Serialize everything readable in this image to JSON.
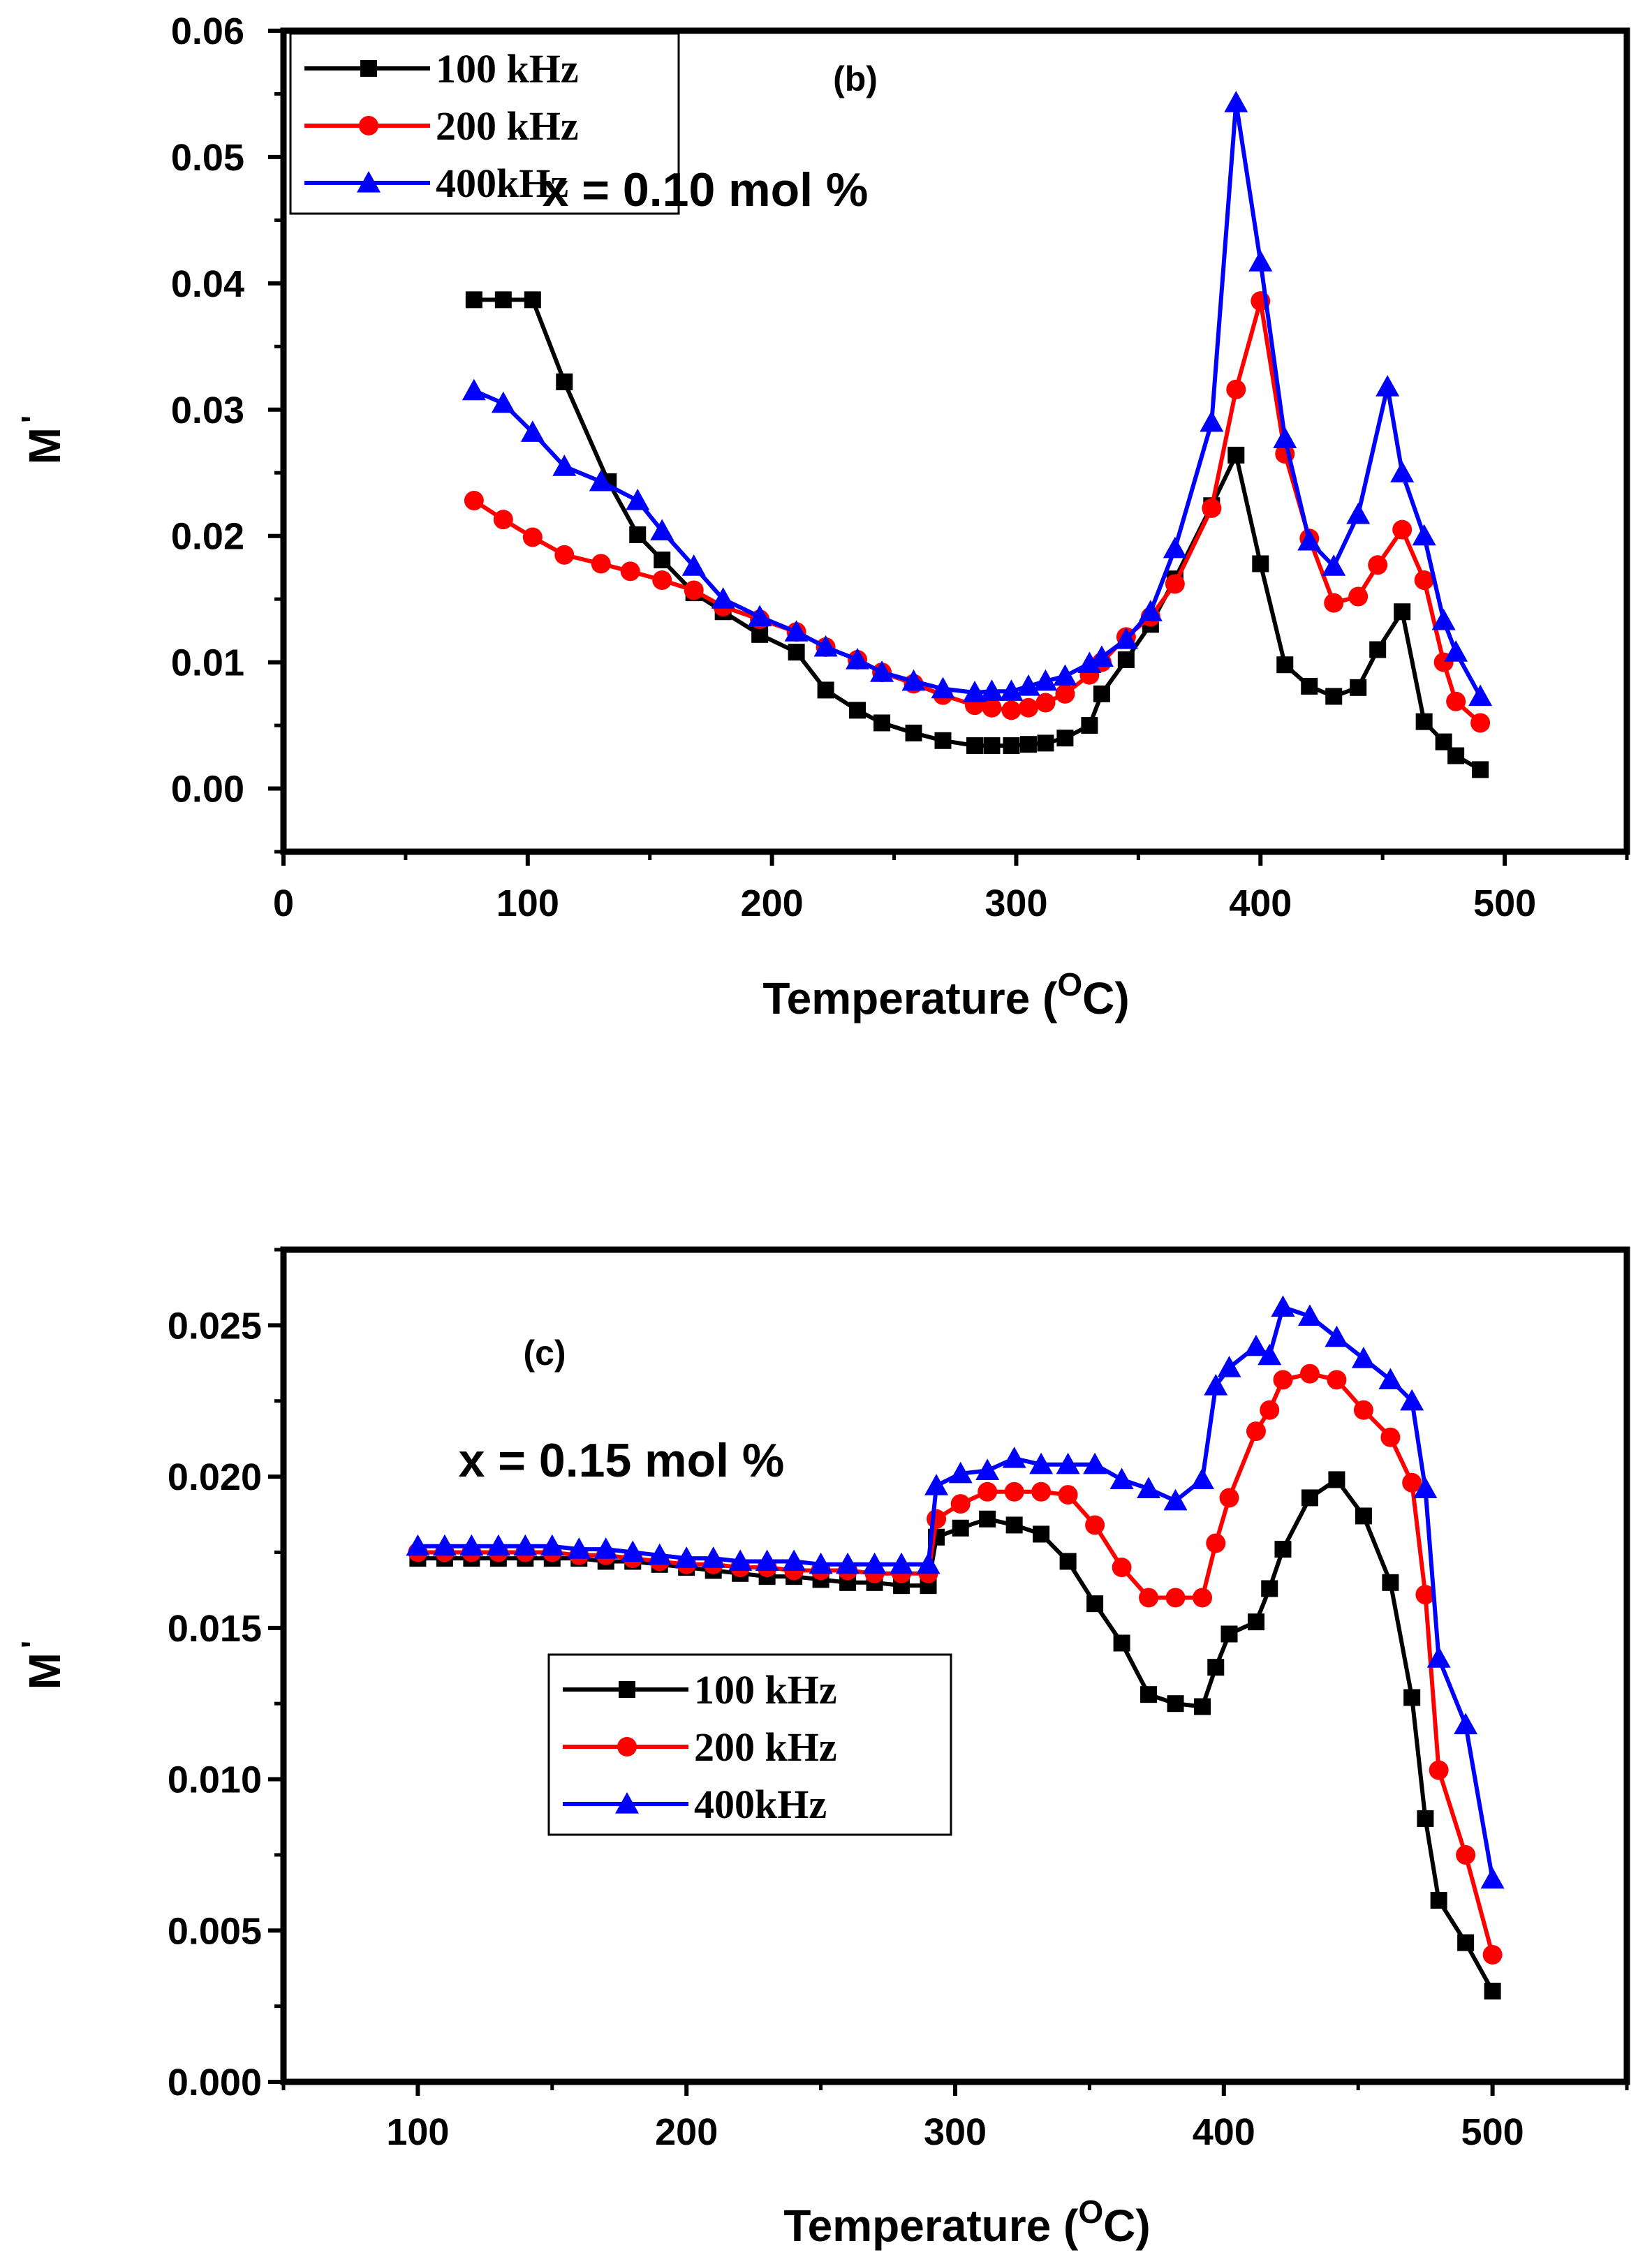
{
  "chart_data": [
    {
      "type": "line",
      "panel_label": "(b)",
      "annotation": "x = 0.10 mol %",
      "xlabel": "Temperature (",
      "xlabel_sup": "O",
      "xlabel_end": "C)",
      "ylabel": "M",
      "ylabel_prime": "'",
      "xlim": [
        0,
        550
      ],
      "ylim": [
        -0.005,
        0.06
      ],
      "xticks": [
        0,
        100,
        200,
        300,
        400,
        500
      ],
      "yticks": [
        0.0,
        0.01,
        0.02,
        0.03,
        0.04,
        0.05,
        0.06
      ],
      "xtick_labels": [
        "0",
        "100",
        "200",
        "300",
        "400",
        "500"
      ],
      "ytick_labels": [
        "0.00",
        "0.01",
        "0.02",
        "0.03",
        "0.04",
        "0.05",
        "0.06"
      ],
      "legend_position": "top-left",
      "series": [
        {
          "name": "100 kHz",
          "color": "#000000",
          "marker": "square",
          "x": [
            78,
            90,
            102,
            115,
            133,
            145,
            155,
            168,
            180,
            195,
            210,
            222,
            235,
            245,
            258,
            270,
            283,
            290,
            298,
            305,
            312,
            320,
            330,
            335,
            345,
            355,
            365,
            380,
            390,
            400,
            410,
            420,
            430,
            440,
            448,
            458,
            467,
            475,
            480,
            490
          ],
          "y": [
            0.0387,
            0.0387,
            0.0387,
            0.0322,
            0.0243,
            0.0201,
            0.0181,
            0.0155,
            0.014,
            0.0122,
            0.0108,
            0.0078,
            0.0062,
            0.0052,
            0.0044,
            0.0038,
            0.0034,
            0.0034,
            0.0034,
            0.0035,
            0.0036,
            0.004,
            0.005,
            0.0075,
            0.0102,
            0.013,
            0.0166,
            0.0224,
            0.0264,
            0.0178,
            0.0098,
            0.0081,
            0.0073,
            0.008,
            0.011,
            0.014,
            0.0053,
            0.0037,
            0.0026,
            0.0015
          ]
        },
        {
          "name": "200 kHz",
          "color": "#ff0000",
          "marker": "circle",
          "x": [
            78,
            90,
            102,
            115,
            130,
            142,
            155,
            168,
            180,
            195,
            210,
            222,
            235,
            245,
            258,
            270,
            283,
            290,
            298,
            305,
            312,
            320,
            330,
            335,
            345,
            355,
            365,
            380,
            390,
            400,
            410,
            420,
            430,
            440,
            448,
            458,
            467,
            475,
            480,
            490
          ],
          "y": [
            0.0228,
            0.0213,
            0.0199,
            0.0185,
            0.0178,
            0.0172,
            0.0165,
            0.0157,
            0.0144,
            0.0134,
            0.0124,
            0.0112,
            0.0102,
            0.0092,
            0.0083,
            0.0074,
            0.0066,
            0.0064,
            0.0062,
            0.0064,
            0.0068,
            0.0075,
            0.009,
            0.01,
            0.012,
            0.0136,
            0.0162,
            0.0222,
            0.0316,
            0.0386,
            0.0265,
            0.0198,
            0.0147,
            0.0152,
            0.0177,
            0.0205,
            0.0165,
            0.01,
            0.0069,
            0.0052
          ]
        },
        {
          "name": "400kHz",
          "color": "#0000ff",
          "marker": "triangle",
          "x": [
            78,
            90,
            102,
            115,
            130,
            145,
            155,
            168,
            180,
            195,
            210,
            222,
            235,
            245,
            258,
            270,
            283,
            290,
            298,
            305,
            312,
            320,
            330,
            335,
            345,
            355,
            365,
            380,
            390,
            400,
            410,
            420,
            430,
            440,
            452,
            458,
            467,
            475,
            480,
            490
          ],
          "y": [
            0.0315,
            0.0305,
            0.0282,
            0.0255,
            0.0243,
            0.0228,
            0.0204,
            0.0176,
            0.015,
            0.0136,
            0.0124,
            0.0112,
            0.0102,
            0.0092,
            0.0085,
            0.0079,
            0.0076,
            0.0077,
            0.0077,
            0.0081,
            0.0085,
            0.0089,
            0.0099,
            0.0104,
            0.0118,
            0.014,
            0.019,
            0.029,
            0.0543,
            0.0417,
            0.0277,
            0.0196,
            0.0176,
            0.0217,
            0.0318,
            0.025,
            0.02,
            0.0133,
            0.0108,
            0.0073
          ]
        }
      ]
    },
    {
      "type": "line",
      "panel_label": "(c)",
      "annotation": "x = 0.15 mol %",
      "xlabel": "Temperature (",
      "xlabel_sup": "O",
      "xlabel_end": "C)",
      "ylabel": "M",
      "ylabel_prime": "'",
      "xlim": [
        50,
        550
      ],
      "ylim": [
        0.0,
        0.0275
      ],
      "xticks": [
        100,
        200,
        300,
        400,
        500
      ],
      "yticks": [
        0.0,
        0.005,
        0.01,
        0.015,
        0.02,
        0.025
      ],
      "xtick_labels": [
        "100",
        "200",
        "300",
        "400",
        "500"
      ],
      "ytick_labels": [
        "0.000",
        "0.005",
        "0.010",
        "0.015",
        "0.020",
        "0.025"
      ],
      "legend_position": "center-left",
      "series": [
        {
          "name": "100 kHz",
          "color": "#000000",
          "marker": "square",
          "x": [
            100,
            110,
            120,
            130,
            140,
            150,
            160,
            170,
            180,
            190,
            200,
            210,
            220,
            230,
            240,
            250,
            260,
            270,
            280,
            290,
            293,
            302,
            312,
            322,
            332,
            342,
            352,
            362,
            372,
            382,
            392,
            397,
            402,
            412,
            417,
            422,
            432,
            442,
            452,
            462,
            470,
            475,
            480,
            490,
            500
          ],
          "y": [
            0.0173,
            0.0173,
            0.0173,
            0.0173,
            0.0173,
            0.0173,
            0.0173,
            0.0172,
            0.0172,
            0.0171,
            0.017,
            0.0169,
            0.0168,
            0.0167,
            0.0167,
            0.0166,
            0.0165,
            0.0165,
            0.0164,
            0.0164,
            0.018,
            0.0183,
            0.0186,
            0.0184,
            0.0181,
            0.0172,
            0.0158,
            0.0145,
            0.0128,
            0.0125,
            0.0124,
            0.0137,
            0.0148,
            0.0152,
            0.0163,
            0.0176,
            0.0193,
            0.0199,
            0.0187,
            0.0165,
            0.0127,
            0.0087,
            0.006,
            0.0046,
            0.003
          ]
        },
        {
          "name": "200 kHz",
          "color": "#ff0000",
          "marker": "circle",
          "x": [
            100,
            110,
            120,
            130,
            140,
            150,
            160,
            170,
            180,
            190,
            200,
            210,
            220,
            230,
            240,
            250,
            260,
            270,
            280,
            290,
            293,
            302,
            312,
            322,
            332,
            342,
            352,
            362,
            372,
            382,
            392,
            397,
            402,
            412,
            417,
            422,
            432,
            442,
            452,
            462,
            470,
            475,
            480,
            490,
            500
          ],
          "y": [
            0.0175,
            0.0175,
            0.0175,
            0.0175,
            0.0175,
            0.0175,
            0.0174,
            0.0174,
            0.0173,
            0.0172,
            0.0171,
            0.0171,
            0.017,
            0.017,
            0.0169,
            0.0169,
            0.0169,
            0.0168,
            0.0168,
            0.0168,
            0.0186,
            0.0191,
            0.0195,
            0.0195,
            0.0195,
            0.0194,
            0.0184,
            0.017,
            0.016,
            0.016,
            0.016,
            0.0178,
            0.0193,
            0.0215,
            0.0222,
            0.0232,
            0.0234,
            0.0232,
            0.0222,
            0.0213,
            0.0198,
            0.0161,
            0.0103,
            0.0075,
            0.0042
          ]
        },
        {
          "name": "400kHz",
          "color": "#0000ff",
          "marker": "triangle",
          "x": [
            100,
            110,
            120,
            130,
            140,
            150,
            160,
            170,
            180,
            190,
            200,
            210,
            220,
            230,
            240,
            250,
            260,
            270,
            280,
            290,
            293,
            302,
            312,
            322,
            332,
            342,
            352,
            362,
            372,
            382,
            392,
            397,
            402,
            412,
            417,
            422,
            432,
            442,
            452,
            462,
            470,
            475,
            480,
            490,
            500
          ],
          "y": [
            0.0177,
            0.0177,
            0.0177,
            0.0177,
            0.0177,
            0.0177,
            0.0176,
            0.0176,
            0.0175,
            0.0174,
            0.0173,
            0.0173,
            0.0172,
            0.0172,
            0.0172,
            0.0171,
            0.0171,
            0.0171,
            0.0171,
            0.0171,
            0.0197,
            0.0201,
            0.0202,
            0.0206,
            0.0204,
            0.0204,
            0.0204,
            0.0199,
            0.0196,
            0.0192,
            0.0199,
            0.023,
            0.0236,
            0.0243,
            0.024,
            0.0256,
            0.0253,
            0.0246,
            0.0239,
            0.0232,
            0.0225,
            0.0196,
            0.014,
            0.0118,
            0.0067
          ]
        }
      ]
    }
  ]
}
